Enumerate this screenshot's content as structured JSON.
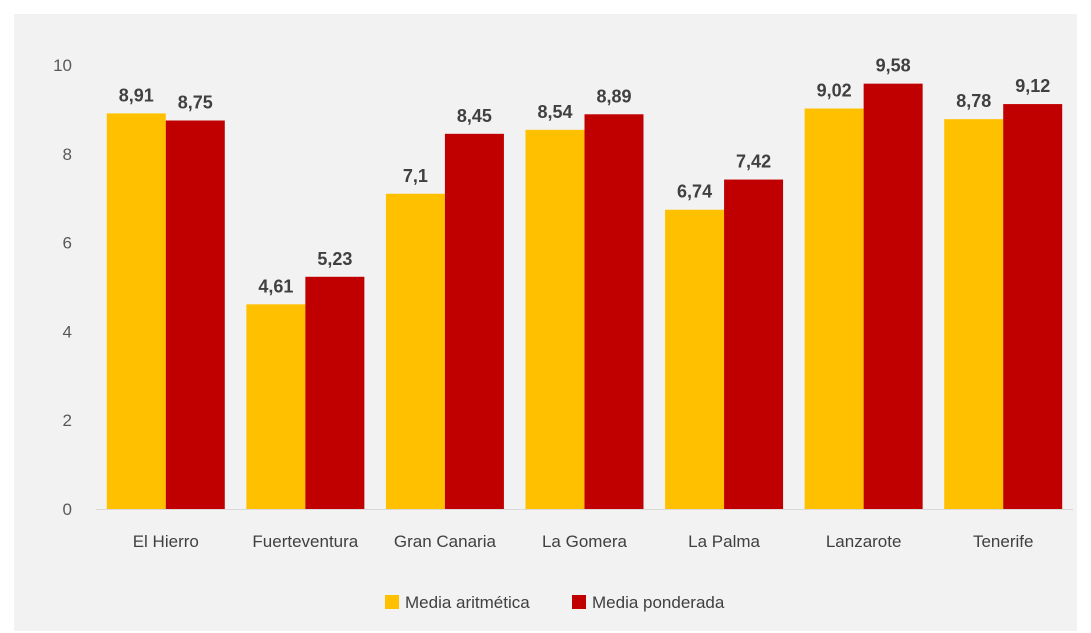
{
  "chart_data": {
    "type": "bar",
    "title": "",
    "xlabel": "",
    "ylabel": "",
    "categories": [
      "El Hierro",
      "Fuerteventura",
      "Gran Canaria",
      "La Gomera",
      "La Palma",
      "Lanzarote",
      "Tenerife"
    ],
    "series": [
      {
        "name": "Media aritmética",
        "color": "#ffc000",
        "values": [
          8.91,
          4.61,
          7.1,
          8.54,
          6.74,
          9.02,
          8.78
        ],
        "labels": [
          "8,91",
          "4,61",
          "7,1",
          "8,54",
          "6,74",
          "9,02",
          "8,78"
        ]
      },
      {
        "name": "Media ponderada",
        "color": "#c00000",
        "values": [
          8.75,
          5.23,
          8.45,
          8.89,
          7.42,
          9.58,
          9.12
        ],
        "labels": [
          "8,75",
          "5,23",
          "8,45",
          "8,89",
          "7,42",
          "9,58",
          "9,12"
        ]
      }
    ],
    "ylim": [
      0,
      10
    ],
    "yticks": [
      "0",
      "2",
      "4",
      "6",
      "8",
      "10"
    ],
    "grid": false,
    "legend_position": "bottom"
  }
}
